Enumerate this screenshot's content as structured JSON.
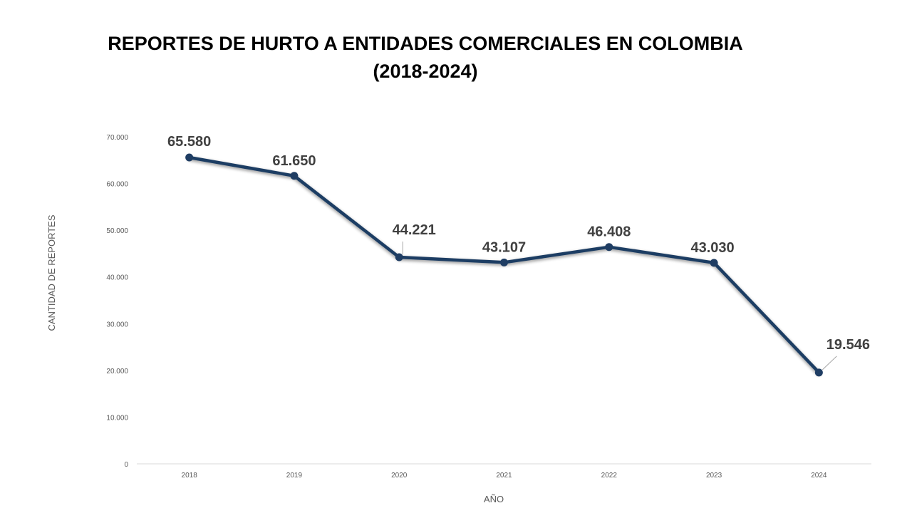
{
  "chart_data": {
    "type": "line",
    "title": "REPORTES DE HURTO A ENTIDADES COMERCIALES EN COLOMBIA",
    "subtitle": "(2018-2024)",
    "xlabel": "AÑO",
    "ylabel": "CANTIDAD DE REPORTES",
    "categories": [
      "2018",
      "2019",
      "2020",
      "2021",
      "2022",
      "2023",
      "2024"
    ],
    "values": [
      65580,
      61650,
      44221,
      43107,
      46408,
      43030,
      19546
    ],
    "data_labels": [
      "65.580",
      "61.650",
      "44.221",
      "43.107",
      "46.408",
      "43.030",
      "19.546"
    ],
    "ylim": [
      0,
      70000
    ],
    "yticks": [
      0,
      10000,
      20000,
      30000,
      40000,
      50000,
      60000,
      70000
    ],
    "ytick_labels": [
      "0",
      "10.000",
      "20.000",
      "30.000",
      "40.000",
      "50.000",
      "60.000",
      "70.000"
    ],
    "grid": false,
    "legend": "none",
    "line_color": "#1F3D63"
  }
}
